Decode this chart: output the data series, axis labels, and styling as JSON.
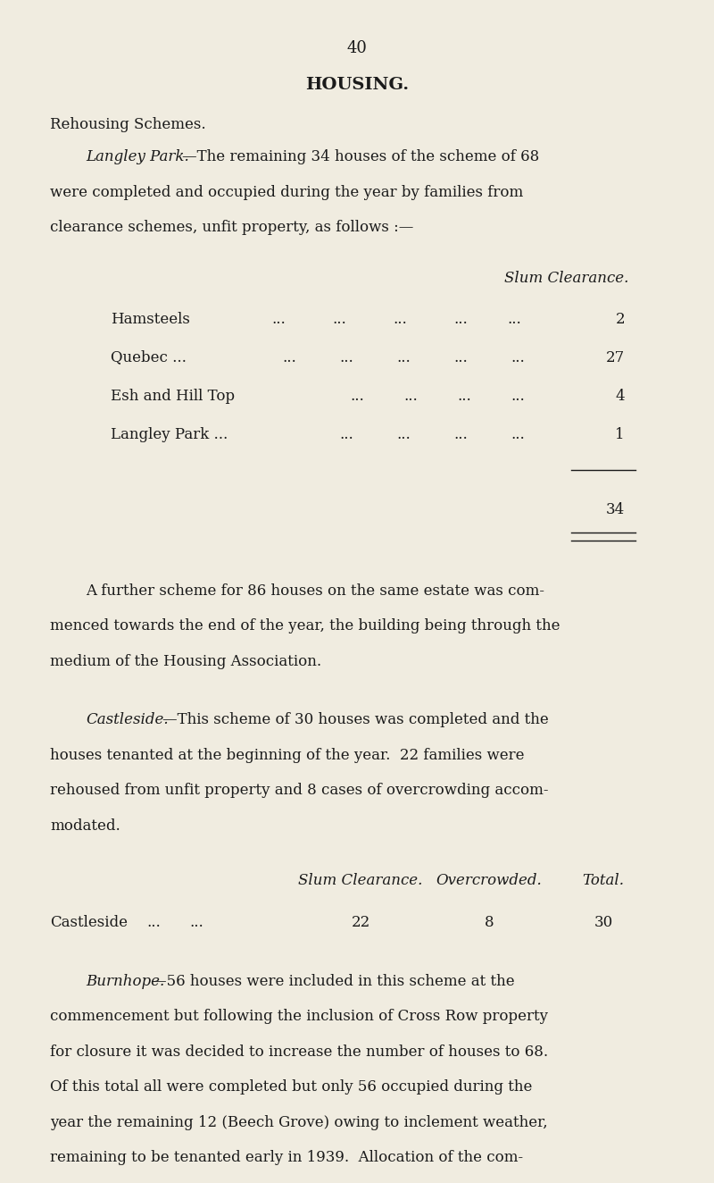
{
  "bg_color": "#f0ece0",
  "text_color": "#1a1a1a",
  "page_number": "40",
  "title": "HOUSING.",
  "section_heading": "Rehousing Schemes.",
  "para1_italic_start": "Langley Park.",
  "para1_text": "—The remaining 34 houses of the scheme of 68 were completed and occupied during the year by families from clearance schemes, unfit property, as follows :—",
  "table1_header": "Slum Clearance.",
  "table1_rows": [
    [
      "Hamsteels",
      "...",
      "...",
      "...",
      "...",
      "...",
      "2"
    ],
    [
      "Quebec ...",
      "...",
      "...",
      "...",
      "...",
      "...",
      "27"
    ],
    [
      "Esh and Hill Top",
      "...",
      "...",
      "...",
      "...",
      "",
      "4"
    ],
    [
      "Langley Park ...",
      "...",
      "...",
      "...",
      "...",
      "",
      "1"
    ]
  ],
  "table1_total": "34",
  "para2_text": "A further scheme for 86 houses on the same estate was com­menced towards the end of the year, the building being through the medium of the Housing Association.",
  "para3_italic_start": "Castleside.",
  "para3_text": "—This scheme of 30 houses was completed and the houses tenanted at the beginning of the year.  22 families were rehoused from unfit property and 8 cases of overcrowding accom­modated.",
  "table2_header1": "Slum Clearance.",
  "table2_header2": "Overcrowded.",
  "table2_header3": "Total.",
  "table2_row": [
    "Castleside",
    "...",
    "...",
    "22",
    "8",
    "30"
  ],
  "para4_italic_start": "Burnhope.",
  "para4_text": "—56 houses were included in this scheme at the commencement but following the inclusion of Cross Row property for closure it was decided to increase the number of houses to 68. Of this total all were completed but only 56 occupied during the year the remaining 12 (Beech Grove) owing to inclement weather, remaining to be tenanted early in 1939.  Allocation of the com­pleted houses were as follows :—"
}
